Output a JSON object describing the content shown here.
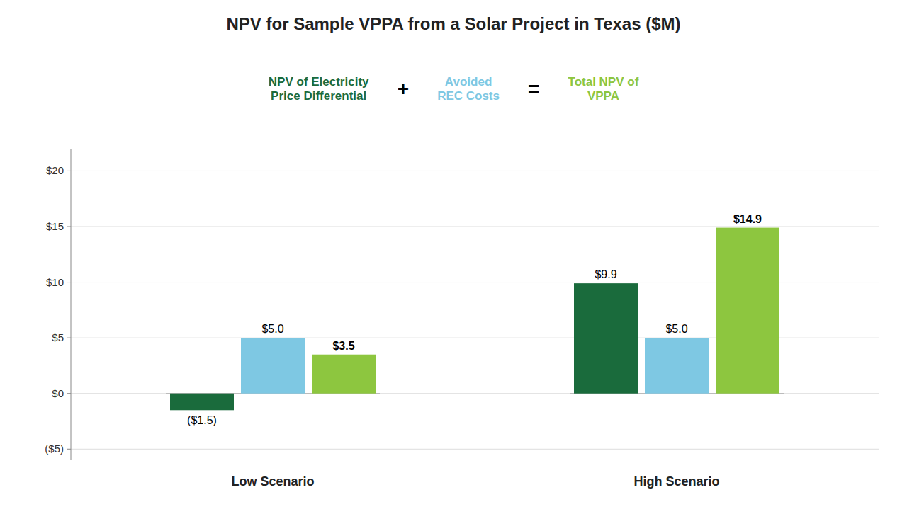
{
  "chart_data": {
    "type": "bar",
    "title": "NPV for Sample VPPA from a Solar Project in Texas ($M)",
    "categories": [
      "Low Scenario",
      "High Scenario"
    ],
    "series": [
      {
        "name": "NPV of Electricity\nPrice Differential",
        "color": "#1a6b3c",
        "values": [
          -1.5,
          9.9
        ],
        "value_labels": [
          "($1.5)",
          "$9.9"
        ]
      },
      {
        "name": "Avoided\nREC Costs",
        "color": "#7ec8e3",
        "values": [
          5.0,
          5.0
        ],
        "value_labels": [
          "$5.0",
          "$5.0"
        ]
      },
      {
        "name": "Total NPV of\nVPPA",
        "color": "#8dc63f",
        "values": [
          3.5,
          14.9
        ],
        "value_labels": [
          "$3.5",
          "$14.9"
        ]
      }
    ],
    "annotations": [
      "+",
      "="
    ],
    "ylim": [
      -6,
      22
    ],
    "yticks": [
      {
        "value": -5,
        "label": "($5)"
      },
      {
        "value": 0,
        "label": "$0"
      },
      {
        "value": 5,
        "label": "$5"
      },
      {
        "value": 10,
        "label": "$10"
      },
      {
        "value": 15,
        "label": "$15"
      },
      {
        "value": 20,
        "label": "$20"
      }
    ],
    "grid": true,
    "legend": "top",
    "data_labels": true
  }
}
